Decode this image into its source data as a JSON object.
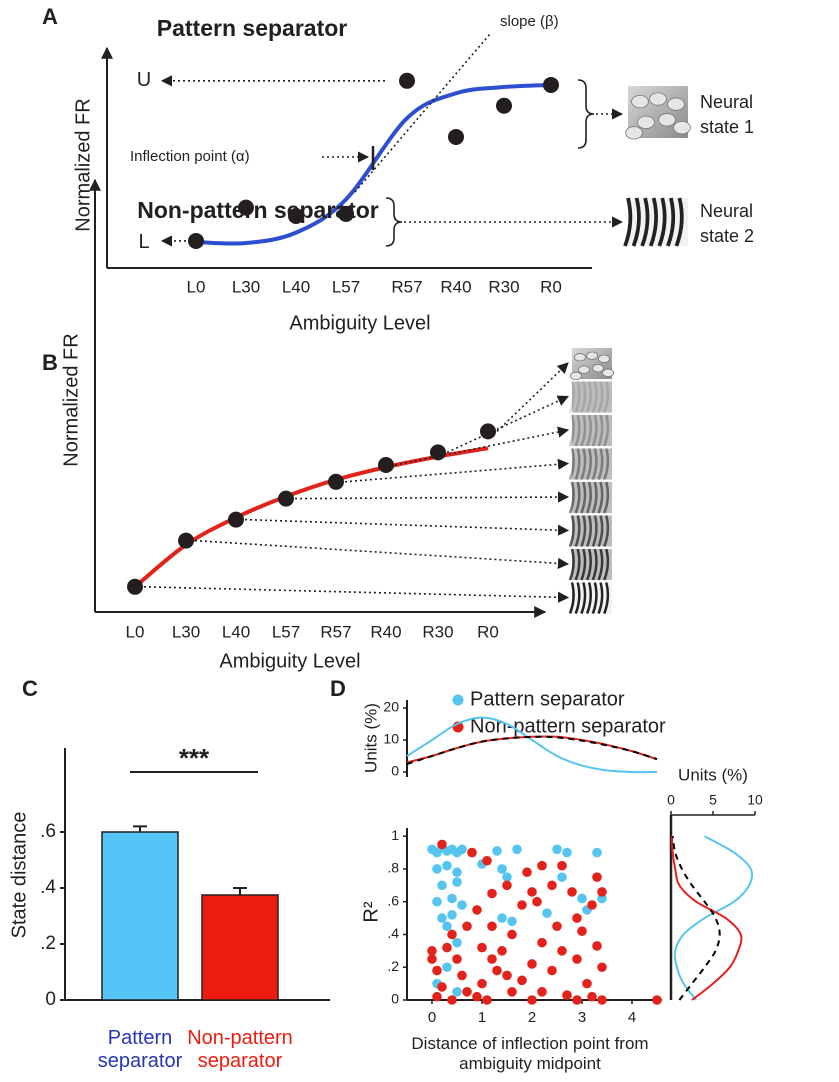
{
  "chart_data": [
    {
      "type": "scatter",
      "panel": "A",
      "title": "Pattern separator",
      "title_color": "#1a33b8",
      "xlabel": "Ambiguity Level",
      "ylabel": "Normalized FR",
      "categories": [
        "L0",
        "L30",
        "L40",
        "L57",
        "R57",
        "R40",
        "R30",
        "R0"
      ],
      "values": [
        0.13,
        0.29,
        0.25,
        0.26,
        0.9,
        0.63,
        0.78,
        0.88
      ],
      "color": "#231f20",
      "fit": [
        0.125,
        0.12,
        0.17,
        0.33,
        0.72,
        0.84,
        0.87,
        0.88
      ],
      "fit_color": "#2b4fd0",
      "ylim": [
        0,
        1
      ],
      "annotations": {
        "upper": "U",
        "lower": "L",
        "slope": "slope (β)",
        "inflection": "Inflection point (α)",
        "state1": [
          "Neural",
          "state 1"
        ],
        "state2": [
          "Neural",
          "state 2"
        ]
      }
    },
    {
      "type": "scatter",
      "panel": "B",
      "title": "Non-pattern separator",
      "title_color": "#e3231b",
      "xlabel": "Ambiguity Level",
      "ylabel": "Normalized FR",
      "categories": [
        "L0",
        "L30",
        "L40",
        "L57",
        "R57",
        "R40",
        "R30",
        "R0"
      ],
      "values": [
        0.06,
        0.17,
        0.22,
        0.27,
        0.31,
        0.35,
        0.38,
        0.43
      ],
      "color": "#231f20",
      "fit": [
        0.06,
        0.16,
        0.225,
        0.275,
        0.315,
        0.345,
        0.37,
        0.39
      ],
      "fit_color": "#e3231b",
      "ylim": [
        0,
        1
      ]
    },
    {
      "type": "bar",
      "panel": "C",
      "ylabel": "State distance",
      "categories": [
        "Pattern separator",
        "Non-pattern separator"
      ],
      "values": [
        0.6,
        0.375
      ],
      "errors": [
        0.02,
        0.025
      ],
      "colors": [
        "#55c5f7",
        "#ee1c0e"
      ],
      "label_colors": [
        "#2536b8",
        "#ee1c0e"
      ],
      "significance": "***",
      "ylim": [
        0,
        0.9
      ],
      "yticks": [
        0,
        {
          "value": 0.2,
          "label": ".2"
        },
        {
          "value": 0.4,
          "label": ".4"
        },
        {
          "value": 0.6,
          "label": ".6"
        }
      ]
    },
    {
      "type": "scatter",
      "panel": "D",
      "xlabel": "Distance of inflection point from ambiguity midpoint",
      "ylabel": "R²",
      "xlim": [
        -0.5,
        4.6
      ],
      "xticks": [
        0,
        1,
        2,
        3,
        4
      ],
      "ylim": [
        0,
        1.05
      ],
      "yticks": [
        0,
        {
          "value": 0.2,
          "label": ".2"
        },
        {
          "value": 0.4,
          "label": ".4"
        },
        {
          "value": 0.6,
          "label": ".6"
        },
        {
          "value": 0.8,
          "label": ".8"
        },
        1
      ],
      "series": [
        {
          "name": "Pattern separator",
          "color": "#55c5f0",
          "x": [
            0,
            0.1,
            0.2,
            0.3,
            0.4,
            0.5,
            0.6,
            0.8,
            1.3,
            1.7,
            2.5,
            3.3,
            0.1,
            0.3,
            0.5,
            1.0,
            1.4,
            0.2,
            0.5,
            1.5,
            2.6,
            0.1,
            0.4,
            0.6,
            3.0,
            3.4,
            0.2,
            0.4,
            1.4,
            1.6,
            3.1,
            0.3,
            0.5,
            0.3,
            0.1,
            0.5,
            2.3,
            2.7
          ],
          "values": [
            0.92,
            0.9,
            0.93,
            0.91,
            0.92,
            0.9,
            0.92,
            0.9,
            0.91,
            0.92,
            0.92,
            0.9,
            0.8,
            0.82,
            0.78,
            0.83,
            0.8,
            0.7,
            0.72,
            0.75,
            0.75,
            0.6,
            0.62,
            0.58,
            0.62,
            0.62,
            0.5,
            0.52,
            0.5,
            0.48,
            0.55,
            0.45,
            0.35,
            0.2,
            0.1,
            0.05,
            0.53,
            0.9
          ]
        },
        {
          "name": "Non-pattern separator",
          "color": "#e3231b",
          "x": [
            0.2,
            0.8,
            1.1,
            1.5,
            1.9,
            2.2,
            2.6,
            3.3,
            1.2,
            2.0,
            2.4,
            2.8,
            3.4,
            0.9,
            1.8,
            2.1,
            2.9,
            3.2,
            0.7,
            1.2,
            1.6,
            2.5,
            0.4,
            3.0,
            2.2,
            0,
            0.3,
            1.0,
            1.4,
            2.6,
            3.3,
            0,
            0.5,
            1.2,
            2.0,
            2.9,
            0.1,
            0.6,
            1.3,
            1.8,
            2.4,
            3.1,
            0.2,
            0.7,
            1.0,
            1.6,
            2.2,
            2.7,
            3.2,
            0.1,
            0.4,
            1.1,
            2.0,
            2.9,
            3.4,
            4.5,
            3.4,
            0.9,
            1.5
          ],
          "values": [
            0.95,
            0.9,
            0.85,
            0.7,
            0.78,
            0.82,
            0.82,
            0.75,
            0.65,
            0.66,
            0.7,
            0.66,
            0.66,
            0.55,
            0.58,
            0.6,
            0.5,
            0.58,
            0.45,
            0.45,
            0.4,
            0.45,
            0.4,
            0.42,
            0.35,
            0.3,
            0.32,
            0.32,
            0.3,
            0.3,
            0.33,
            0.25,
            0.25,
            0.25,
            0.22,
            0.25,
            0.18,
            0.15,
            0.18,
            0.12,
            0.18,
            0.1,
            0.08,
            0.05,
            0.1,
            0.05,
            0.05,
            0.03,
            0.02,
            0.02,
            0,
            0,
            0,
            0,
            0,
            0,
            0.2,
            0.02,
            0.15
          ]
        }
      ]
    },
    {
      "type": "line",
      "ylabel": "Units (%)",
      "xlim": [
        -0.5,
        4.6
      ],
      "x": [
        -0.5,
        0,
        0.5,
        1,
        1.5,
        2,
        2.5,
        3,
        3.5,
        4,
        4.5
      ],
      "ylim": [
        0,
        20
      ],
      "yticks": [
        0,
        10,
        20
      ],
      "series": [
        {
          "color": "#55c5f0",
          "values": [
            5,
            10,
            15,
            17,
            15,
            10,
            5,
            2,
            0.5,
            0,
            0
          ]
        },
        {
          "color": "#e3231b",
          "values": [
            3,
            5,
            7.5,
            9.5,
            10.5,
            11,
            11,
            10,
            8.5,
            6.5,
            4
          ]
        },
        {
          "color": "#000000",
          "dash": true,
          "values": [
            2.5,
            5,
            7.5,
            9.5,
            10.5,
            11,
            10.8,
            9.8,
            8.3,
            6.5,
            4
          ]
        }
      ]
    },
    {
      "type": "line",
      "orientation": "horizontal",
      "xlabel": "Units (%)",
      "xlim": [
        0,
        10
      ],
      "xticks": [
        0,
        5,
        10
      ],
      "ylim": [
        0,
        1.05
      ],
      "y": [
        0,
        0.1,
        0.2,
        0.3,
        0.4,
        0.5,
        0.6,
        0.7,
        0.8,
        0.9,
        1
      ],
      "series": [
        {
          "color": "#55c5f0",
          "values": [
            3,
            1.5,
            0.7,
            0.5,
            1.5,
            4,
            7.5,
            9.3,
            9.5,
            7.5,
            4
          ]
        },
        {
          "color": "#e3231b",
          "values": [
            2.5,
            5,
            7,
            8,
            8.3,
            6.5,
            3,
            1,
            0.5,
            0.2,
            0.1
          ]
        },
        {
          "color": "#000000",
          "dash": true,
          "values": [
            1,
            2.5,
            4,
            5.3,
            5.8,
            5.3,
            4,
            2.5,
            1.3,
            0.5,
            0.2
          ]
        }
      ]
    }
  ]
}
